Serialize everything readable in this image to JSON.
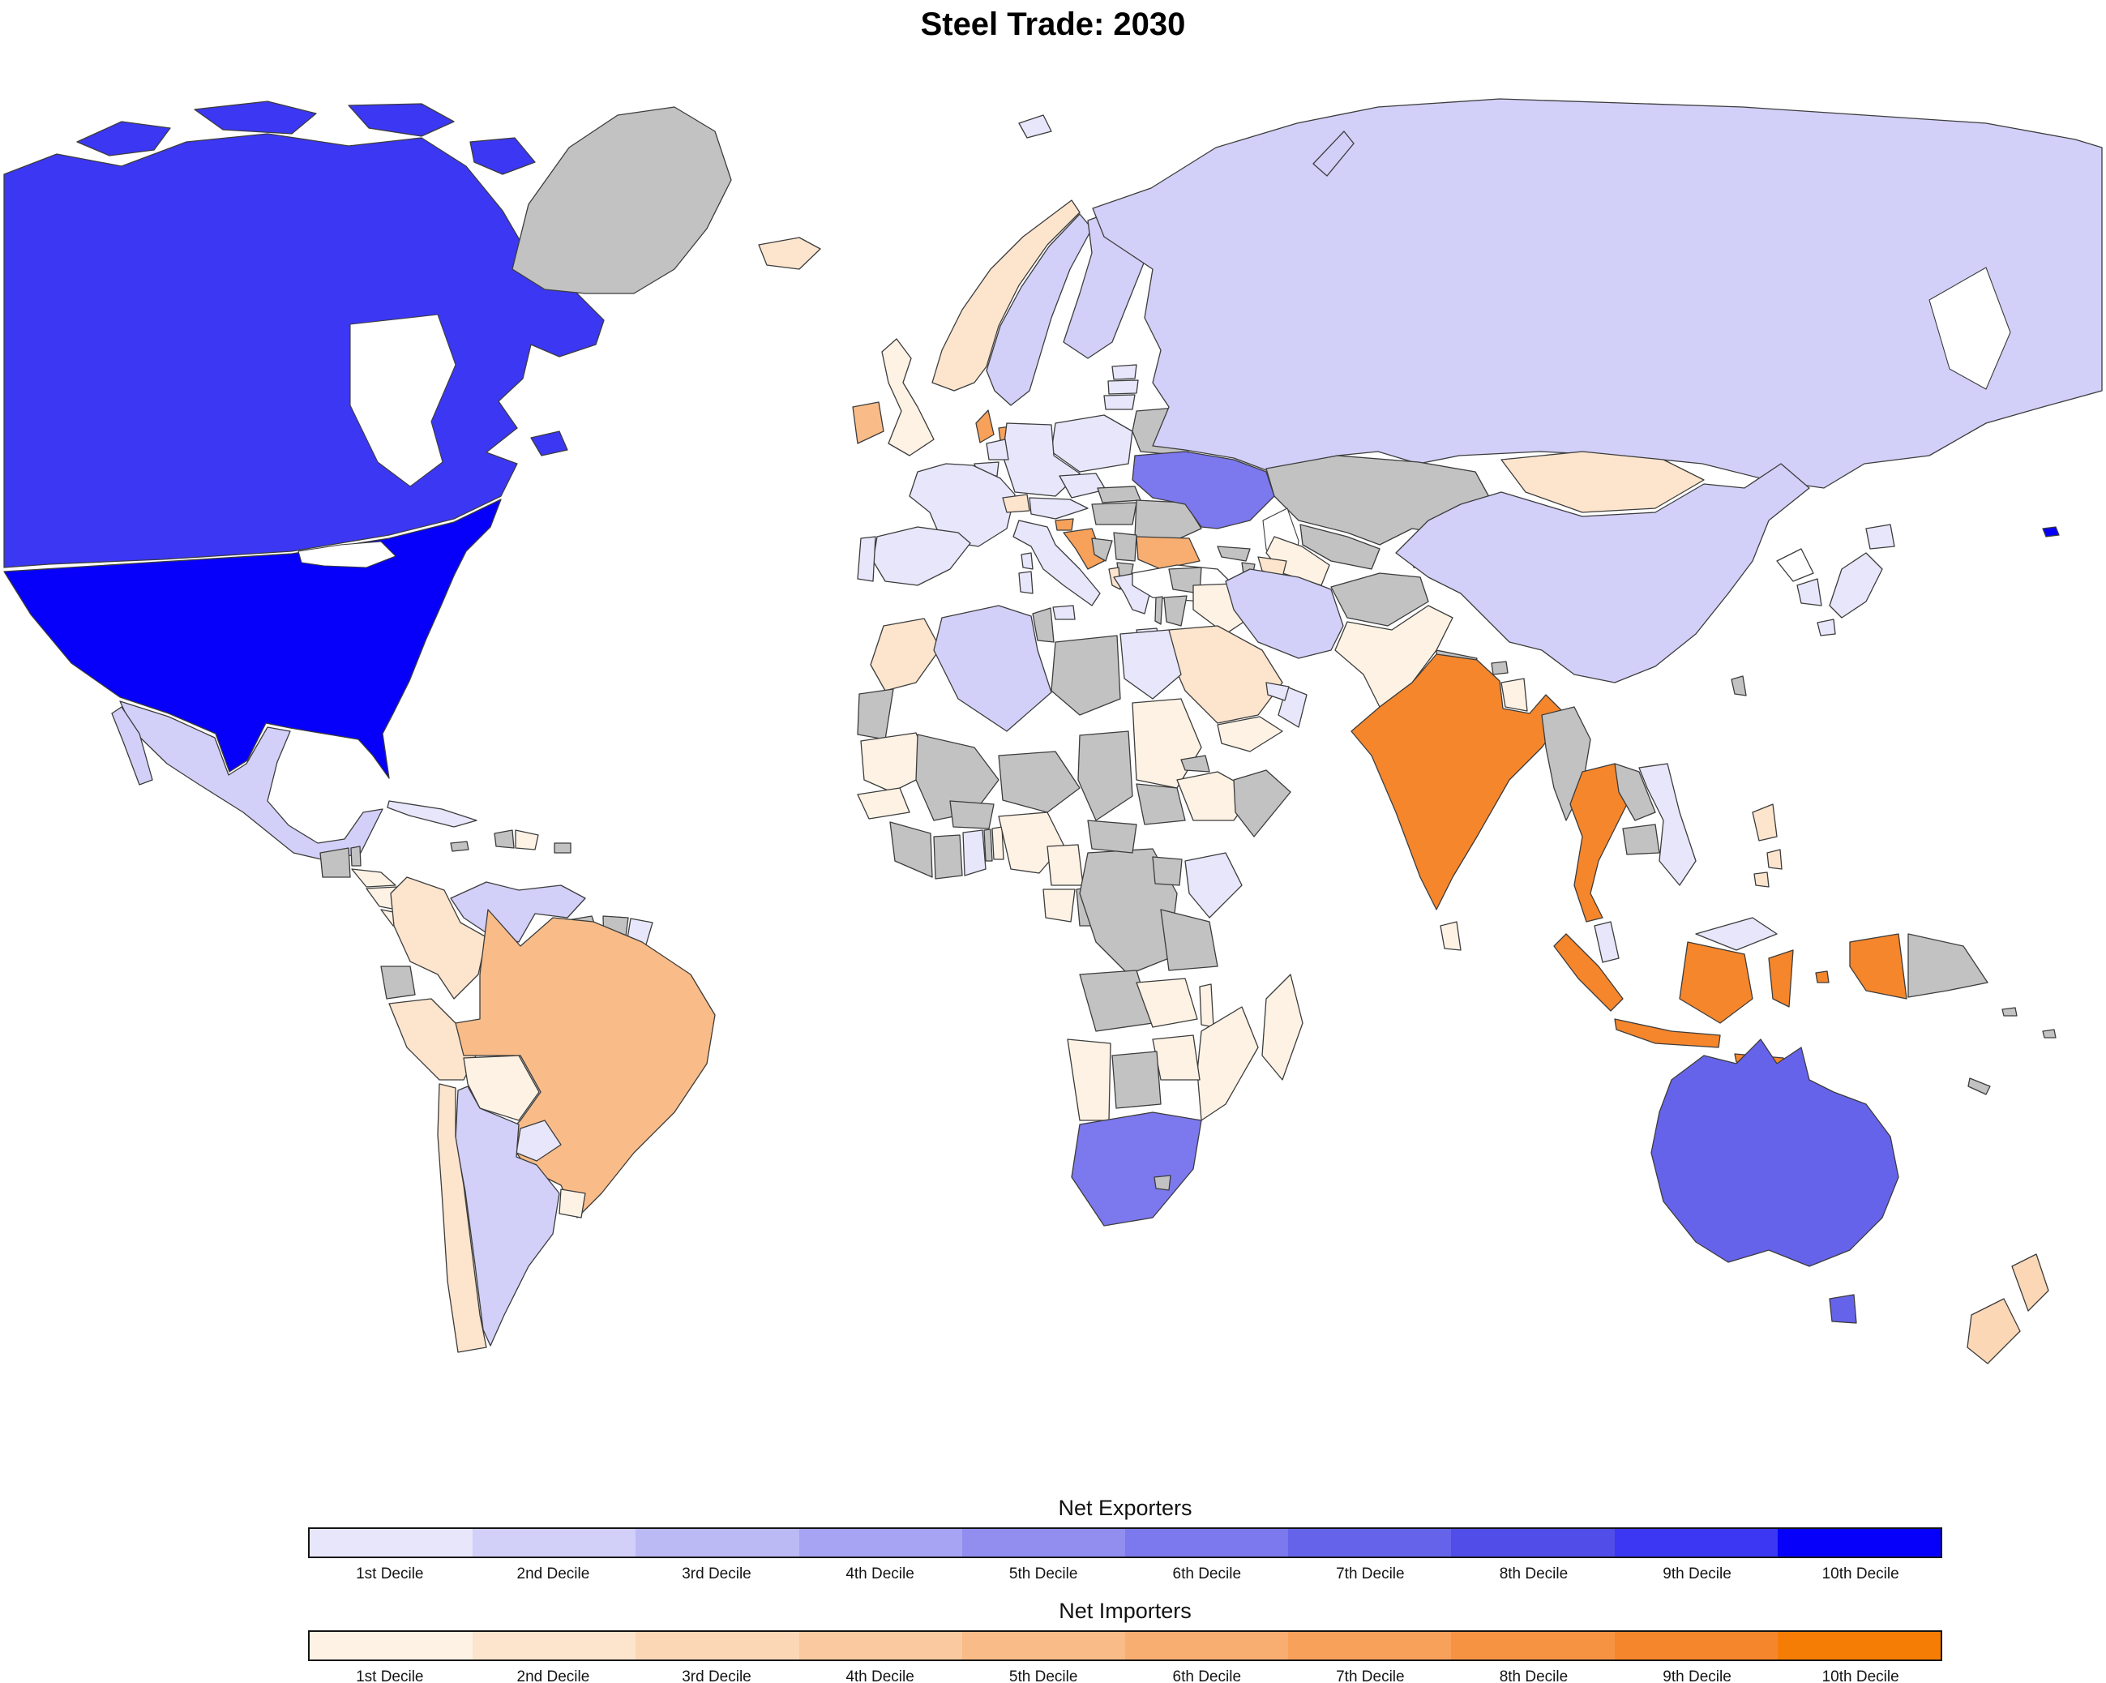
{
  "title": "Steel Trade: 2030",
  "legends": {
    "exporters": {
      "title": "Net Exporters",
      "labels": [
        "1st Decile",
        "2nd Decile",
        "3rd Decile",
        "4th Decile",
        "5th Decile",
        "6th Decile",
        "7th Decile",
        "8th Decile",
        "9th Decile",
        "10th Decile"
      ],
      "colors": [
        "#e7e6fb",
        "#d2d0f8",
        "#bcbaf5",
        "#a7a4f3",
        "#918ef0",
        "#7c78ed",
        "#6663eb",
        "#514de8",
        "#3b37f3",
        "#0600fa"
      ]
    },
    "importers": {
      "title": "Net Importers",
      "labels": [
        "1st Decile",
        "2nd Decile",
        "3rd Decile",
        "4th Decile",
        "5th Decile",
        "6th Decile",
        "7th Decile",
        "8th Decile",
        "9th Decile",
        "10th Decile"
      ],
      "colors": [
        "#fdf2e4",
        "#fce4cd",
        "#fbd7b6",
        "#fac99f",
        "#f9bc88",
        "#f8ae71",
        "#f7a15a",
        "#f69343",
        "#f5862c",
        "#f67d05"
      ]
    }
  },
  "map": {
    "no_data_color": "#c2c2c2",
    "white_fill": "#ffffff",
    "ocean_color": "#ffffff",
    "border_color": "#3c3c3c",
    "countries": [
      {
        "id": "canada",
        "name": "Canada",
        "group": "exporter",
        "decile": 9
      },
      {
        "id": "usa",
        "name": "United States",
        "group": "exporter",
        "decile": 10
      },
      {
        "id": "mexico",
        "name": "Mexico",
        "group": "exporter",
        "decile": 2
      },
      {
        "id": "guatemala",
        "name": "Guatemala",
        "group": "none"
      },
      {
        "id": "belize",
        "name": "Belize",
        "group": "none"
      },
      {
        "id": "honduras",
        "name": "Honduras",
        "group": "importer",
        "decile": 1
      },
      {
        "id": "nicaragua",
        "name": "Nicaragua",
        "group": "importer",
        "decile": 1
      },
      {
        "id": "costa-rica",
        "name": "Costa Rica",
        "group": "importer",
        "decile": 1
      },
      {
        "id": "panama",
        "name": "Panama",
        "group": "importer",
        "decile": 1
      },
      {
        "id": "cuba",
        "name": "Cuba",
        "group": "exporter",
        "decile": 1
      },
      {
        "id": "jamaica",
        "name": "Jamaica",
        "group": "none"
      },
      {
        "id": "haiti",
        "name": "Haiti",
        "group": "none"
      },
      {
        "id": "dominican-republic",
        "name": "Dominican Republic",
        "group": "importer",
        "decile": 1
      },
      {
        "id": "puerto-rico",
        "name": "Puerto Rico",
        "group": "none"
      },
      {
        "id": "greenland",
        "name": "Greenland",
        "group": "none"
      },
      {
        "id": "iceland",
        "name": "Iceland",
        "group": "importer",
        "decile": 2
      },
      {
        "id": "venezuela",
        "name": "Venezuela",
        "group": "exporter",
        "decile": 2
      },
      {
        "id": "colombia",
        "name": "Colombia",
        "group": "importer",
        "decile": 2
      },
      {
        "id": "guyana",
        "name": "Guyana",
        "group": "none"
      },
      {
        "id": "suriname",
        "name": "Suriname",
        "group": "none"
      },
      {
        "id": "french-guiana",
        "name": "French Guiana",
        "group": "exporter",
        "decile": 1
      },
      {
        "id": "ecuador",
        "name": "Ecuador",
        "group": "none"
      },
      {
        "id": "peru",
        "name": "Peru",
        "group": "importer",
        "decile": 2
      },
      {
        "id": "brazil",
        "name": "Brazil",
        "group": "importer",
        "decile": 5
      },
      {
        "id": "bolivia",
        "name": "Bolivia",
        "group": "importer",
        "decile": 1
      },
      {
        "id": "paraguay",
        "name": "Paraguay",
        "group": "exporter",
        "decile": 1
      },
      {
        "id": "uruguay",
        "name": "Uruguay",
        "group": "importer",
        "decile": 1
      },
      {
        "id": "chile",
        "name": "Chile",
        "group": "importer",
        "decile": 2
      },
      {
        "id": "argentina",
        "name": "Argentina",
        "group": "exporter",
        "decile": 2
      },
      {
        "id": "uk",
        "name": "United Kingdom",
        "group": "importer",
        "decile": 1
      },
      {
        "id": "ireland",
        "name": "Ireland",
        "group": "importer",
        "decile": 5
      },
      {
        "id": "norway",
        "name": "Norway",
        "group": "importer",
        "decile": 2
      },
      {
        "id": "sweden",
        "name": "Sweden",
        "group": "exporter",
        "decile": 2
      },
      {
        "id": "finland",
        "name": "Finland",
        "group": "exporter",
        "decile": 2
      },
      {
        "id": "denmark",
        "name": "Denmark",
        "group": "importer",
        "decile": 7
      },
      {
        "id": "estonia",
        "name": "Estonia",
        "group": "exporter",
        "decile": 1
      },
      {
        "id": "latvia",
        "name": "Latvia",
        "group": "exporter",
        "decile": 1
      },
      {
        "id": "lithuania",
        "name": "Lithuania",
        "group": "exporter",
        "decile": 1
      },
      {
        "id": "belarus",
        "name": "Belarus",
        "group": "none"
      },
      {
        "id": "poland",
        "name": "Poland",
        "group": "exporter",
        "decile": 1
      },
      {
        "id": "germany",
        "name": "Germany",
        "group": "exporter",
        "decile": 1
      },
      {
        "id": "netherlands",
        "name": "Netherlands",
        "group": "exporter",
        "decile": 1
      },
      {
        "id": "belgium",
        "name": "Belgium",
        "group": "exporter",
        "decile": 1
      },
      {
        "id": "france",
        "name": "France",
        "group": "exporter",
        "decile": 1
      },
      {
        "id": "switzerland",
        "name": "Switzerland",
        "group": "importer",
        "decile": 2
      },
      {
        "id": "czechia",
        "name": "Czechia",
        "group": "exporter",
        "decile": 1
      },
      {
        "id": "austria",
        "name": "Austria",
        "group": "exporter",
        "decile": 1
      },
      {
        "id": "slovakia",
        "name": "Slovakia",
        "group": "none"
      },
      {
        "id": "hungary",
        "name": "Hungary",
        "group": "none"
      },
      {
        "id": "romania",
        "name": "Romania",
        "group": "none"
      },
      {
        "id": "moldova",
        "name": "Moldova",
        "group": "none"
      },
      {
        "id": "ukraine",
        "name": "Ukraine",
        "group": "exporter",
        "decile": 6
      },
      {
        "id": "slovenia",
        "name": "Slovenia",
        "group": "importer",
        "decile": 7
      },
      {
        "id": "croatia",
        "name": "Croatia",
        "group": "importer",
        "decile": 7
      },
      {
        "id": "bosnia",
        "name": "Bosnia and Herzegovina",
        "group": "none"
      },
      {
        "id": "serbia",
        "name": "Serbia",
        "group": "none"
      },
      {
        "id": "north-macedonia",
        "name": "North Macedonia",
        "group": "none"
      },
      {
        "id": "albania",
        "name": "Albania",
        "group": "importer",
        "decile": 2
      },
      {
        "id": "bulgaria",
        "name": "Bulgaria",
        "group": "importer",
        "decile": 6
      },
      {
        "id": "greece",
        "name": "Greece",
        "group": "exporter",
        "decile": 1
      },
      {
        "id": "italy",
        "name": "Italy",
        "group": "exporter",
        "decile": 1
      },
      {
        "id": "spain",
        "name": "Spain",
        "group": "exporter",
        "decile": 1
      },
      {
        "id": "portugal",
        "name": "Portugal",
        "group": "exporter",
        "decile": 1
      },
      {
        "id": "russia",
        "name": "Russia",
        "group": "exporter",
        "decile": 2
      },
      {
        "id": "svalbard",
        "name": "Svalbard",
        "group": "exporter",
        "decile": 1
      },
      {
        "id": "kazakhstan",
        "name": "Kazakhstan",
        "group": "none"
      },
      {
        "id": "uzbekistan",
        "name": "Uzbekistan",
        "group": "none"
      },
      {
        "id": "turkmenistan",
        "name": "Turkmenistan",
        "group": "importer",
        "decile": 1
      },
      {
        "id": "kyrgyzstan",
        "name": "Kyrgyzstan",
        "group": "none"
      },
      {
        "id": "tajikistan",
        "name": "Tajikistan",
        "group": "none"
      },
      {
        "id": "afghanistan",
        "name": "Afghanistan",
        "group": "none"
      },
      {
        "id": "pakistan",
        "name": "Pakistan",
        "group": "importer",
        "decile": 1
      },
      {
        "id": "iran",
        "name": "Iran",
        "group": "exporter",
        "decile": 2
      },
      {
        "id": "iraq",
        "name": "Iraq",
        "group": "importer",
        "decile": 1
      },
      {
        "id": "syria",
        "name": "Syria",
        "group": "none"
      },
      {
        "id": "jordan",
        "name": "Jordan",
        "group": "none"
      },
      {
        "id": "israel",
        "name": "Israel",
        "group": "none"
      },
      {
        "id": "saudi-arabia",
        "name": "Saudi Arabia",
        "group": "importer",
        "decile": 2
      },
      {
        "id": "yemen",
        "name": "Yemen",
        "group": "importer",
        "decile": 1
      },
      {
        "id": "oman",
        "name": "Oman",
        "group": "exporter",
        "decile": 1
      },
      {
        "id": "uae",
        "name": "United Arab Emirates",
        "group": "exporter",
        "decile": 1
      },
      {
        "id": "turkey",
        "name": "Turkey",
        "group": "white"
      },
      {
        "id": "georgia",
        "name": "Georgia",
        "group": "none"
      },
      {
        "id": "armenia",
        "name": "Armenia",
        "group": "none"
      },
      {
        "id": "azerbaijan",
        "name": "Azerbaijan",
        "group": "importer",
        "decile": 2
      },
      {
        "id": "morocco",
        "name": "Morocco",
        "group": "importer",
        "decile": 2
      },
      {
        "id": "western-sahara",
        "name": "Western Sahara",
        "group": "none"
      },
      {
        "id": "mauritania",
        "name": "Mauritania",
        "group": "importer",
        "decile": 1
      },
      {
        "id": "senegal",
        "name": "Senegal",
        "group": "importer",
        "decile": 1
      },
      {
        "id": "guinea",
        "name": "Guinea",
        "group": "none"
      },
      {
        "id": "mali",
        "name": "Mali",
        "group": "none"
      },
      {
        "id": "burkina-faso",
        "name": "Burkina Faso",
        "group": "none"
      },
      {
        "id": "ivory-coast",
        "name": "Ivory Coast",
        "group": "none"
      },
      {
        "id": "ghana",
        "name": "Ghana",
        "group": "exporter",
        "decile": 1
      },
      {
        "id": "togo",
        "name": "Togo",
        "group": "none"
      },
      {
        "id": "benin",
        "name": "Benin",
        "group": "importer",
        "decile": 1
      },
      {
        "id": "niger",
        "name": "Niger",
        "group": "none"
      },
      {
        "id": "nigeria",
        "name": "Nigeria",
        "group": "importer",
        "decile": 1
      },
      {
        "id": "chad",
        "name": "Chad",
        "group": "none"
      },
      {
        "id": "cameroon",
        "name": "Cameroon",
        "group": "importer",
        "decile": 1
      },
      {
        "id": "gabon",
        "name": "Gabon",
        "group": "importer",
        "decile": 1
      },
      {
        "id": "congo",
        "name": "Republic of the Congo",
        "group": "none"
      },
      {
        "id": "drc",
        "name": "DR Congo",
        "group": "none"
      },
      {
        "id": "central-african-republic",
        "name": "Central African Republic",
        "group": "none"
      },
      {
        "id": "south-sudan",
        "name": "South Sudan",
        "group": "none"
      },
      {
        "id": "sudan",
        "name": "Sudan",
        "group": "importer",
        "decile": 1
      },
      {
        "id": "egypt",
        "name": "Egypt",
        "group": "exporter",
        "decile": 1
      },
      {
        "id": "libya",
        "name": "Libya",
        "group": "none"
      },
      {
        "id": "tunisia",
        "name": "Tunisia",
        "group": "none"
      },
      {
        "id": "algeria",
        "name": "Algeria",
        "group": "exporter",
        "decile": 2
      },
      {
        "id": "eritrea",
        "name": "Eritrea",
        "group": "none"
      },
      {
        "id": "ethiopia",
        "name": "Ethiopia",
        "group": "importer",
        "decile": 1
      },
      {
        "id": "somalia",
        "name": "Somalia",
        "group": "none"
      },
      {
        "id": "kenya",
        "name": "Kenya",
        "group": "exporter",
        "decile": 1
      },
      {
        "id": "uganda",
        "name": "Uganda",
        "group": "none"
      },
      {
        "id": "tanzania",
        "name": "Tanzania",
        "group": "none"
      },
      {
        "id": "angola",
        "name": "Angola",
        "group": "none"
      },
      {
        "id": "zambia",
        "name": "Zambia",
        "group": "importer",
        "decile": 1
      },
      {
        "id": "malawi",
        "name": "Malawi",
        "group": "importer",
        "decile": 1
      },
      {
        "id": "mozambique",
        "name": "Mozambique",
        "group": "importer",
        "decile": 1
      },
      {
        "id": "zimbabwe",
        "name": "Zimbabwe",
        "group": "importer",
        "decile": 1
      },
      {
        "id": "botswana",
        "name": "Botswana",
        "group": "none"
      },
      {
        "id": "namibia",
        "name": "Namibia",
        "group": "importer",
        "decile": 1
      },
      {
        "id": "south-africa",
        "name": "South Africa",
        "group": "exporter",
        "decile": 6
      },
      {
        "id": "lesotho",
        "name": "Lesotho",
        "group": "none"
      },
      {
        "id": "madagascar",
        "name": "Madagascar",
        "group": "importer",
        "decile": 1
      },
      {
        "id": "mongolia",
        "name": "Mongolia",
        "group": "importer",
        "decile": 2
      },
      {
        "id": "china",
        "name": "China",
        "group": "exporter",
        "decile": 2
      },
      {
        "id": "north-korea",
        "name": "North Korea",
        "group": "white"
      },
      {
        "id": "south-korea",
        "name": "South Korea",
        "group": "exporter",
        "decile": 1
      },
      {
        "id": "japan",
        "name": "Japan",
        "group": "exporter",
        "decile": 1
      },
      {
        "id": "taiwan",
        "name": "Taiwan",
        "group": "none"
      },
      {
        "id": "nepal",
        "name": "Nepal",
        "group": "none"
      },
      {
        "id": "bhutan",
        "name": "Bhutan",
        "group": "none"
      },
      {
        "id": "bangladesh",
        "name": "Bangladesh",
        "group": "importer",
        "decile": 1
      },
      {
        "id": "india",
        "name": "India",
        "group": "importer",
        "decile": 9
      },
      {
        "id": "sri-lanka",
        "name": "Sri Lanka",
        "group": "importer",
        "decile": 1
      },
      {
        "id": "myanmar",
        "name": "Myanmar",
        "group": "none"
      },
      {
        "id": "thailand",
        "name": "Thailand",
        "group": "importer",
        "decile": 9
      },
      {
        "id": "laos",
        "name": "Laos",
        "group": "none"
      },
      {
        "id": "cambodia",
        "name": "Cambodia",
        "group": "none"
      },
      {
        "id": "vietnam",
        "name": "Vietnam",
        "group": "exporter",
        "decile": 1
      },
      {
        "id": "malaysia",
        "name": "Malaysia",
        "group": "exporter",
        "decile": 1
      },
      {
        "id": "philippines",
        "name": "Philippines",
        "group": "importer",
        "decile": 2
      },
      {
        "id": "indonesia",
        "name": "Indonesia",
        "group": "importer",
        "decile": 9
      },
      {
        "id": "papua-new-guinea",
        "name": "Papua New Guinea",
        "group": "none"
      },
      {
        "id": "solomon-islands",
        "name": "Solomon Islands",
        "group": "none"
      },
      {
        "id": "fiji",
        "name": "Fiji",
        "group": "none"
      },
      {
        "id": "new-caledonia",
        "name": "New Caledonia",
        "group": "none"
      },
      {
        "id": "australia",
        "name": "Australia",
        "group": "exporter",
        "decile": 7
      },
      {
        "id": "new-zealand",
        "name": "New Zealand",
        "group": "importer",
        "decile": 3
      }
    ]
  }
}
